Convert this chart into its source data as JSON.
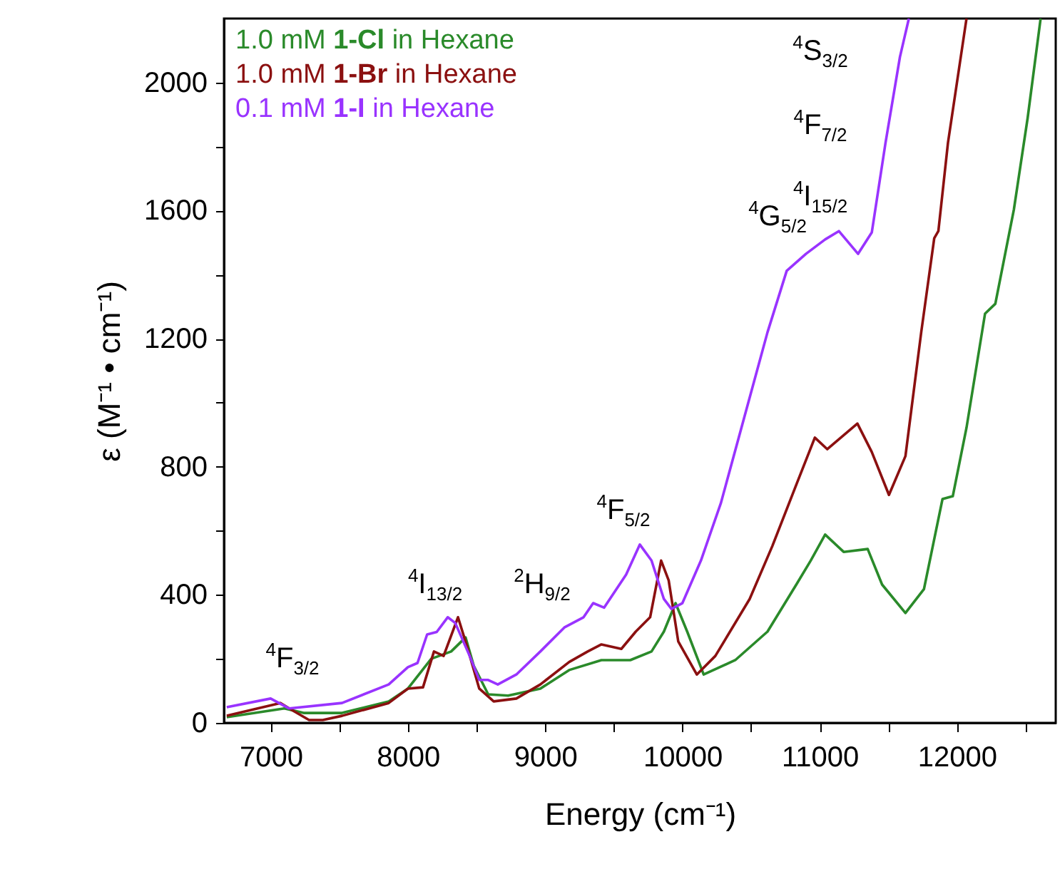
{
  "chart_data": {
    "type": "line",
    "xlabel": "Energy (cm⁻¹)",
    "ylabel": "ε (M⁻¹ • cm⁻¹)",
    "xlim": [
      6660,
      12720
    ],
    "ylim": [
      0,
      2200
    ],
    "xticks": [
      {
        "value": 7000,
        "label": "7000"
      },
      {
        "value": 7500,
        "label": null
      },
      {
        "value": 8000,
        "label": "8000"
      },
      {
        "value": 8500,
        "label": null
      },
      {
        "value": 9000,
        "label": "9000"
      },
      {
        "value": 9500,
        "label": null
      },
      {
        "value": 10000,
        "label": "10000"
      },
      {
        "value": 10500,
        "label": null
      },
      {
        "value": 11000,
        "label": "11000"
      },
      {
        "value": 11500,
        "label": null
      },
      {
        "value": 12000,
        "label": "12000"
      },
      {
        "value": 12500,
        "label": null
      }
    ],
    "yticks": [
      {
        "value": 0,
        "label": "0"
      },
      {
        "value": 200,
        "label": null
      },
      {
        "value": 400,
        "label": "400"
      },
      {
        "value": 600,
        "label": null
      },
      {
        "value": 800,
        "label": "800"
      },
      {
        "value": 1000,
        "label": null
      },
      {
        "value": 1200,
        "label": "1200"
      },
      {
        "value": 1400,
        "label": null
      },
      {
        "value": 1600,
        "label": "1600"
      },
      {
        "value": 1800,
        "label": null
      },
      {
        "value": 2000,
        "label": "2000"
      }
    ],
    "grid": false,
    "legend": "top left",
    "series": [
      {
        "name": "1.0 mM 1-Cl in Hexane",
        "color": "#2a8a2a",
        "x": [
          6680,
          7100,
          7240,
          7520,
          7860,
          8000,
          8170,
          8315,
          8420,
          8480,
          8585,
          8730,
          8965,
          9175,
          9410,
          9620,
          9775,
          9865,
          9950,
          10035,
          10155,
          10385,
          10620,
          10830,
          10935,
          11040,
          11175,
          11350,
          11455,
          11625,
          11760,
          11895,
          11970,
          12070,
          12205,
          12280,
          12415,
          12515,
          12610
        ],
        "values": [
          18,
          45,
          31,
          31,
          67,
          107,
          200,
          223,
          267,
          178,
          89,
          85,
          107,
          165,
          196,
          196,
          223,
          285,
          374,
          285,
          151,
          196,
          285,
          432,
          507,
          588,
          534,
          543,
          432,
          343,
          418,
          699,
          708,
          922,
          1278,
          1309,
          1603,
          1888,
          2200
        ]
      },
      {
        "name": "1.0 mM 1-Br in Hexane",
        "color": "#8b1010",
        "x": [
          6680,
          7070,
          7155,
          7280,
          7380,
          7520,
          7860,
          8000,
          8110,
          8190,
          8260,
          8365,
          8430,
          8520,
          8625,
          8790,
          8965,
          9175,
          9310,
          9410,
          9555,
          9660,
          9765,
          9845,
          9900,
          9970,
          10105,
          10240,
          10490,
          10655,
          10830,
          10965,
          11055,
          11275,
          11380,
          11505,
          11625,
          11740,
          11835,
          11865,
          11935,
          12070
        ],
        "values": [
          22,
          62,
          40,
          9,
          9,
          22,
          62,
          107,
          111,
          223,
          209,
          330,
          240,
          107,
          67,
          76,
          120,
          190,
          223,
          245,
          231,
          285,
          330,
          507,
          445,
          254,
          151,
          209,
          387,
          552,
          744,
          891,
          855,
          935,
          846,
          712,
          833,
          1220,
          1514,
          1536,
          1812,
          2200
        ]
      },
      {
        "name": "0.1 mM 1-I in Hexane",
        "color": "#9933ff",
        "x": [
          6680,
          7000,
          7135,
          7520,
          7860,
          8000,
          8070,
          8140,
          8210,
          8290,
          8345,
          8450,
          8520,
          8585,
          8655,
          8790,
          8965,
          9140,
          9280,
          9350,
          9430,
          9590,
          9690,
          9775,
          9865,
          9920,
          10000,
          10135,
          10280,
          10450,
          10620,
          10760,
          10900,
          11040,
          11140,
          11280,
          11380,
          11480,
          11585,
          11650
        ],
        "values": [
          49,
          76,
          45,
          62,
          120,
          174,
          187,
          276,
          284,
          330,
          312,
          209,
          134,
          134,
          120,
          151,
          223,
          298,
          330,
          374,
          360,
          463,
          557,
          507,
          387,
          356,
          374,
          507,
          686,
          953,
          1220,
          1412,
          1465,
          1510,
          1536,
          1465,
          1532,
          1812,
          2080,
          2200
        ]
      }
    ],
    "annotations": [
      "$^{4}$F$_{3/2}$",
      "$^{4}$I$_{13/2}$",
      "$^{2}$H$_{9/2}$",
      "$^{4}$F$_{5/2}$",
      "$^{4}$G$_{5/2}$",
      "$^{4}$I$_{15/2}$",
      "$^{4}$F$_{7/2}$",
      "$^{4}$S$_{3/2}$"
    ]
  }
}
